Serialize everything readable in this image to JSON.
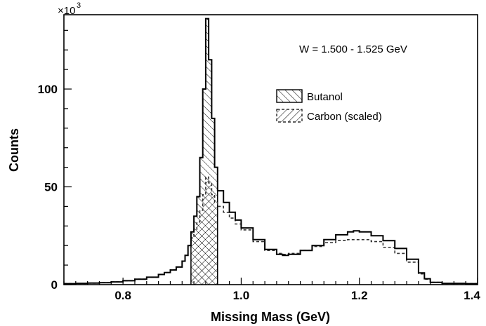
{
  "chart_data": {
    "type": "histogram",
    "xlabel": "Missing Mass (GeV)",
    "ylabel": "Counts",
    "y_multiplier": "×10",
    "y_multiplier_exponent": "3",
    "annotation": "W = 1.500 - 1.525 GeV",
    "xlim": [
      0.7,
      1.4
    ],
    "ylim": [
      0,
      138
    ],
    "xticks": [
      {
        "value": 0.8,
        "label": "0.8"
      },
      {
        "value": 1.0,
        "label": "1.0"
      },
      {
        "value": 1.2,
        "label": "1.2"
      },
      {
        "value": 1.4,
        "label": "1.4"
      }
    ],
    "yticks": [
      {
        "value": 0,
        "label": "0"
      },
      {
        "value": 50,
        "label": "50"
      },
      {
        "value": 100,
        "label": "100"
      }
    ],
    "legend": {
      "placement": "upper-right",
      "entries": [
        {
          "label": "Butanol",
          "style": "solid",
          "hatch": "backslash"
        },
        {
          "label": "Carbon (scaled)",
          "style": "dashed",
          "hatch": "slash"
        }
      ]
    },
    "series": [
      {
        "name": "Butanol",
        "style": "solid",
        "points": [
          [
            0.7,
            0.5
          ],
          [
            0.72,
            0.6
          ],
          [
            0.74,
            0.8
          ],
          [
            0.76,
            1.0
          ],
          [
            0.78,
            1.4
          ],
          [
            0.8,
            2.0
          ],
          [
            0.82,
            2.8
          ],
          [
            0.84,
            3.8
          ],
          [
            0.86,
            5.2
          ],
          [
            0.87,
            6.2
          ],
          [
            0.88,
            7.5
          ],
          [
            0.89,
            9.0
          ],
          [
            0.9,
            12.0
          ],
          [
            0.905,
            15.0
          ],
          [
            0.91,
            20.0
          ],
          [
            0.915,
            27.0
          ],
          [
            0.92,
            35.0
          ],
          [
            0.925,
            45.0
          ],
          [
            0.93,
            65.0
          ],
          [
            0.935,
            100.0
          ],
          [
            0.94,
            136.0
          ],
          [
            0.945,
            115.0
          ],
          [
            0.95,
            85.0
          ],
          [
            0.955,
            60.0
          ],
          [
            0.96,
            48.0
          ],
          [
            0.97,
            42.0
          ],
          [
            0.98,
            37.0
          ],
          [
            0.99,
            33.0
          ],
          [
            1.0,
            29.0
          ],
          [
            1.02,
            23.0
          ],
          [
            1.04,
            18.0
          ],
          [
            1.06,
            15.5
          ],
          [
            1.07,
            15.0
          ],
          [
            1.08,
            15.5
          ],
          [
            1.1,
            17.5
          ],
          [
            1.12,
            20.0
          ],
          [
            1.14,
            23.0
          ],
          [
            1.16,
            25.5
          ],
          [
            1.18,
            27.0
          ],
          [
            1.19,
            27.5
          ],
          [
            1.2,
            27.0
          ],
          [
            1.22,
            25.0
          ],
          [
            1.24,
            22.5
          ],
          [
            1.26,
            18.5
          ],
          [
            1.28,
            13.0
          ],
          [
            1.3,
            6.0
          ],
          [
            1.31,
            3.0
          ],
          [
            1.32,
            1.2
          ],
          [
            1.34,
            0.6
          ],
          [
            1.36,
            0.6
          ],
          [
            1.38,
            0.5
          ],
          [
            1.4,
            0.5
          ]
        ]
      },
      {
        "name": "Carbon (scaled)",
        "style": "dashed",
        "points": [
          [
            0.7,
            0.5
          ],
          [
            0.72,
            0.6
          ],
          [
            0.74,
            0.8
          ],
          [
            0.76,
            1.0
          ],
          [
            0.78,
            1.4
          ],
          [
            0.8,
            2.0
          ],
          [
            0.82,
            2.8
          ],
          [
            0.84,
            3.8
          ],
          [
            0.86,
            5.2
          ],
          [
            0.87,
            6.2
          ],
          [
            0.88,
            7.5
          ],
          [
            0.89,
            9.0
          ],
          [
            0.9,
            12.0
          ],
          [
            0.905,
            15.0
          ],
          [
            0.91,
            19.0
          ],
          [
            0.915,
            24.0
          ],
          [
            0.92,
            28.0
          ],
          [
            0.925,
            32.0
          ],
          [
            0.93,
            38.0
          ],
          [
            0.935,
            46.0
          ],
          [
            0.94,
            55.0
          ],
          [
            0.945,
            52.0
          ],
          [
            0.95,
            46.0
          ],
          [
            0.955,
            42.0
          ],
          [
            0.96,
            40.0
          ],
          [
            0.97,
            37.0
          ],
          [
            0.98,
            34.0
          ],
          [
            0.99,
            31.0
          ],
          [
            1.0,
            28.0
          ],
          [
            1.02,
            22.0
          ],
          [
            1.04,
            17.5
          ],
          [
            1.06,
            16.0
          ],
          [
            1.07,
            15.5
          ],
          [
            1.08,
            16.0
          ],
          [
            1.1,
            17.5
          ],
          [
            1.12,
            19.5
          ],
          [
            1.14,
            21.5
          ],
          [
            1.16,
            22.5
          ],
          [
            1.18,
            23.0
          ],
          [
            1.2,
            23.0
          ],
          [
            1.22,
            22.0
          ],
          [
            1.24,
            19.0
          ],
          [
            1.26,
            16.0
          ],
          [
            1.28,
            11.5
          ],
          [
            1.3,
            5.5
          ],
          [
            1.31,
            2.8
          ],
          [
            1.32,
            1.2
          ],
          [
            1.34,
            0.6
          ],
          [
            1.36,
            0.6
          ],
          [
            1.38,
            0.5
          ],
          [
            1.4,
            0.5
          ]
        ]
      }
    ],
    "hatched_region": {
      "x_start": 0.915,
      "x_end": 0.96
    }
  }
}
